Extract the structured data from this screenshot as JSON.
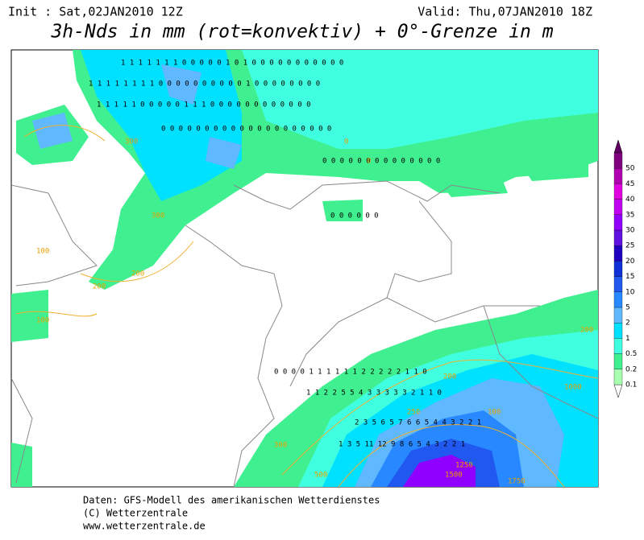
{
  "header": {
    "init": "Init : Sat,02JAN2010 12Z",
    "valid": "Valid: Thu,07JAN2010 18Z",
    "title": "3h-Nds in mm (rot=konvektiv) + 0°-Grenze in m"
  },
  "legend": {
    "labels": [
      "0.1",
      "0.2",
      "0.5",
      "1",
      "2",
      "5",
      "10",
      "15",
      "20",
      "25",
      "30",
      "35",
      "40",
      "45",
      "50"
    ],
    "colors": [
      "#a8ffb0",
      "#40f090",
      "#40ffe0",
      "#00e0ff",
      "#60b8ff",
      "#2888ff",
      "#2058f0",
      "#1030d8",
      "#2000c0",
      "#6010e0",
      "#9000ff",
      "#c000f0",
      "#e000e0",
      "#b000b0",
      "#800080"
    ]
  },
  "contour_labels": [
    "300",
    "300",
    "100",
    "200",
    "200",
    "100",
    "0",
    "200",
    "100",
    "1000",
    "200",
    "1250",
    "1500",
    "1750",
    "300",
    "500",
    "250",
    "0"
  ],
  "digit_rows": [
    "1 1 1 1 1 1 1 0 0 0 0 0 1 0 1 0 0 0 0 0 0 0 0 0 0 0",
    "1 1 1 1 1 1 1 1 0 0 0 0 0 0 0 0 0 0 1 0 0 0 0 0 0 0 0",
    "1 1 1 1 1 0 0 0 0 0 1 1 1 0 0 0 0 0 0 0 0 0 0 0 0",
    "0 0 0 0 0 0 0 0 0 0 0 0 0 0 0 0 0 0 0 0",
    "0 0 0 0 0 0",
    "0 0 0 0 0 0 0 0 0 0 0 0 0 0",
    "0 0 0 0 1 1 1 1 1 1 2 2 2 2 2 1 1 0",
    "1 1 2 2 5 5 4 3 3 3 3 3 2 1 1 0",
    "2 3 5 6 5 7 6 6 5 4 4 3 2 2 1",
    "1 3 5 11 12 9 8 6 5 4 3 2 2 1"
  ],
  "footer": [
    "Daten: GFS-Modell des amerikanischen Wetterdienstes",
    "(C) Wetterzentrale",
    "www.wetterzentrale.de"
  ]
}
